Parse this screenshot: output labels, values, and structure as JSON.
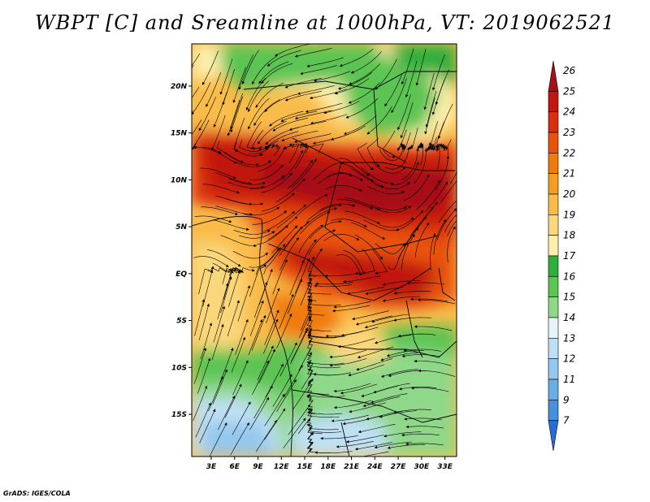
{
  "title": "WBPT [C] and Sreamline at 1000hPa, VT: 2019062521",
  "credit": "GrADS: IGES/COLA",
  "lat_labels": [
    {
      "text": "20N",
      "value": 20
    },
    {
      "text": "15N",
      "value": 15
    },
    {
      "text": "10N",
      "value": 10
    },
    {
      "text": "5N",
      "value": 5
    },
    {
      "text": "EQ",
      "value": 0
    },
    {
      "text": "5S",
      "value": -5
    },
    {
      "text": "10S",
      "value": -10
    },
    {
      "text": "15S",
      "value": -15
    }
  ],
  "lon_labels": [
    {
      "text": "3E",
      "value": 3
    },
    {
      "text": "6E",
      "value": 6
    },
    {
      "text": "9E",
      "value": 9
    },
    {
      "text": "12E",
      "value": 12
    },
    {
      "text": "15E",
      "value": 15
    },
    {
      "text": "18E",
      "value": 18
    },
    {
      "text": "21E",
      "value": 21
    },
    {
      "text": "24E",
      "value": 24
    },
    {
      "text": "27E",
      "value": 27
    },
    {
      "text": "30E",
      "value": 30
    },
    {
      "text": "33E",
      "value": 33
    }
  ],
  "map_extent": {
    "lon_min": 0.5,
    "lon_max": 34.5,
    "lat_min": -19.5,
    "lat_max": 24.5
  },
  "colorbar": {
    "labels": [
      "26",
      "25",
      "24",
      "23",
      "22",
      "21",
      "20",
      "19",
      "18",
      "17",
      "16",
      "15",
      "14",
      "13",
      "12",
      "11",
      "9",
      "7"
    ],
    "colors": [
      "#a50f15",
      "#c0180e",
      "#d92f0c",
      "#e8520a",
      "#f07a0c",
      "#f59c22",
      "#f9bc4a",
      "#fbd77b",
      "#fdefad",
      "#2fae3c",
      "#5cc452",
      "#8fd889",
      "#e6f4f9",
      "#bfe0f4",
      "#94c8ee",
      "#6aaee6",
      "#4690de",
      "#256fd4"
    ]
  }
}
